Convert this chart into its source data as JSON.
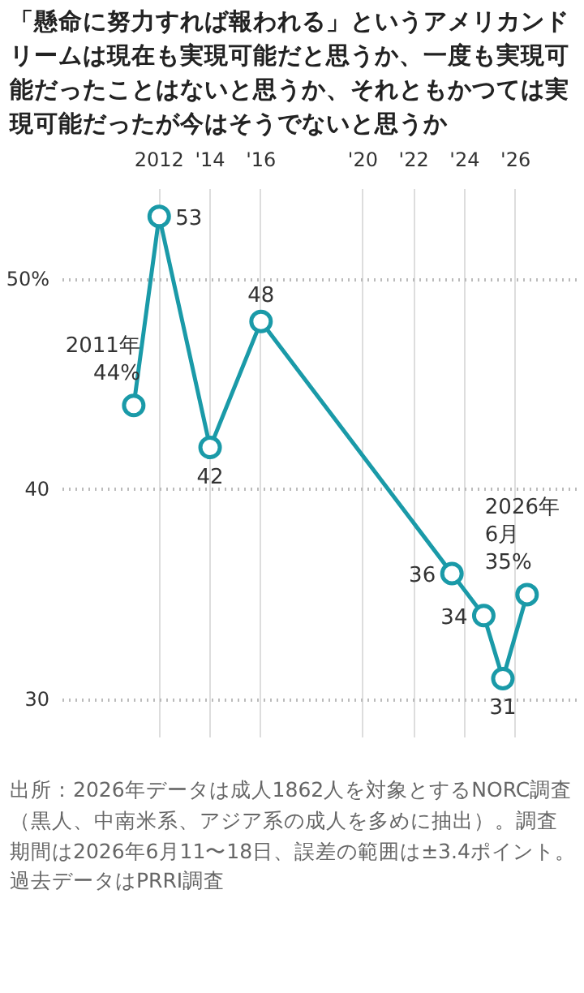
{
  "chart_data": {
    "type": "line",
    "title": "「懸命に努力すれば報われる」というアメリカンドリームは現在も実現可能だと思うか、一度も実現可能だったことはないと思うか、それともかつては実現可能だったが今はそうでないと思うか",
    "x": [
      2011,
      2012,
      2014,
      2016,
      2023.5,
      2024.75,
      2025.5,
      2026.45
    ],
    "series": [
      {
        "color": "#1a9aa8",
        "values": [
          44,
          53,
          42,
          48,
          36,
          34,
          31,
          35
        ]
      }
    ],
    "value_labels": [
      "2011年\n44%",
      "53",
      "42",
      "48",
      "36",
      "34",
      "31",
      "2026年\n6月\n35%"
    ],
    "xlim": [
      2008.2,
      2028.4
    ],
    "xticks": [
      {
        "value": 2012,
        "label": "2012"
      },
      {
        "value": 2014,
        "label": "'14"
      },
      {
        "value": 2016,
        "label": "'16"
      },
      {
        "value": 2020,
        "label": "'20"
      },
      {
        "value": 2022,
        "label": "'22"
      },
      {
        "value": 2024,
        "label": "'24"
      },
      {
        "value": 2026,
        "label": "'26"
      }
    ],
    "ylim": [
      28.2,
      54.3
    ],
    "yticks": [
      {
        "value": 30,
        "label": "30"
      },
      {
        "value": 40,
        "label": "40"
      },
      {
        "value": 50,
        "label": "50%"
      }
    ],
    "grid": true,
    "marker": "circle",
    "line_style": "solid",
    "annotations": [
      "出所：2026年データは成人1862人を対象とするNORC調査（黒人、中南米系、アジア系の成人を多めに抽出）。調査期間は2026年6月11〜18日、誤差の範囲は±3.4ポイント。過去データはPRRI調査"
    ]
  }
}
